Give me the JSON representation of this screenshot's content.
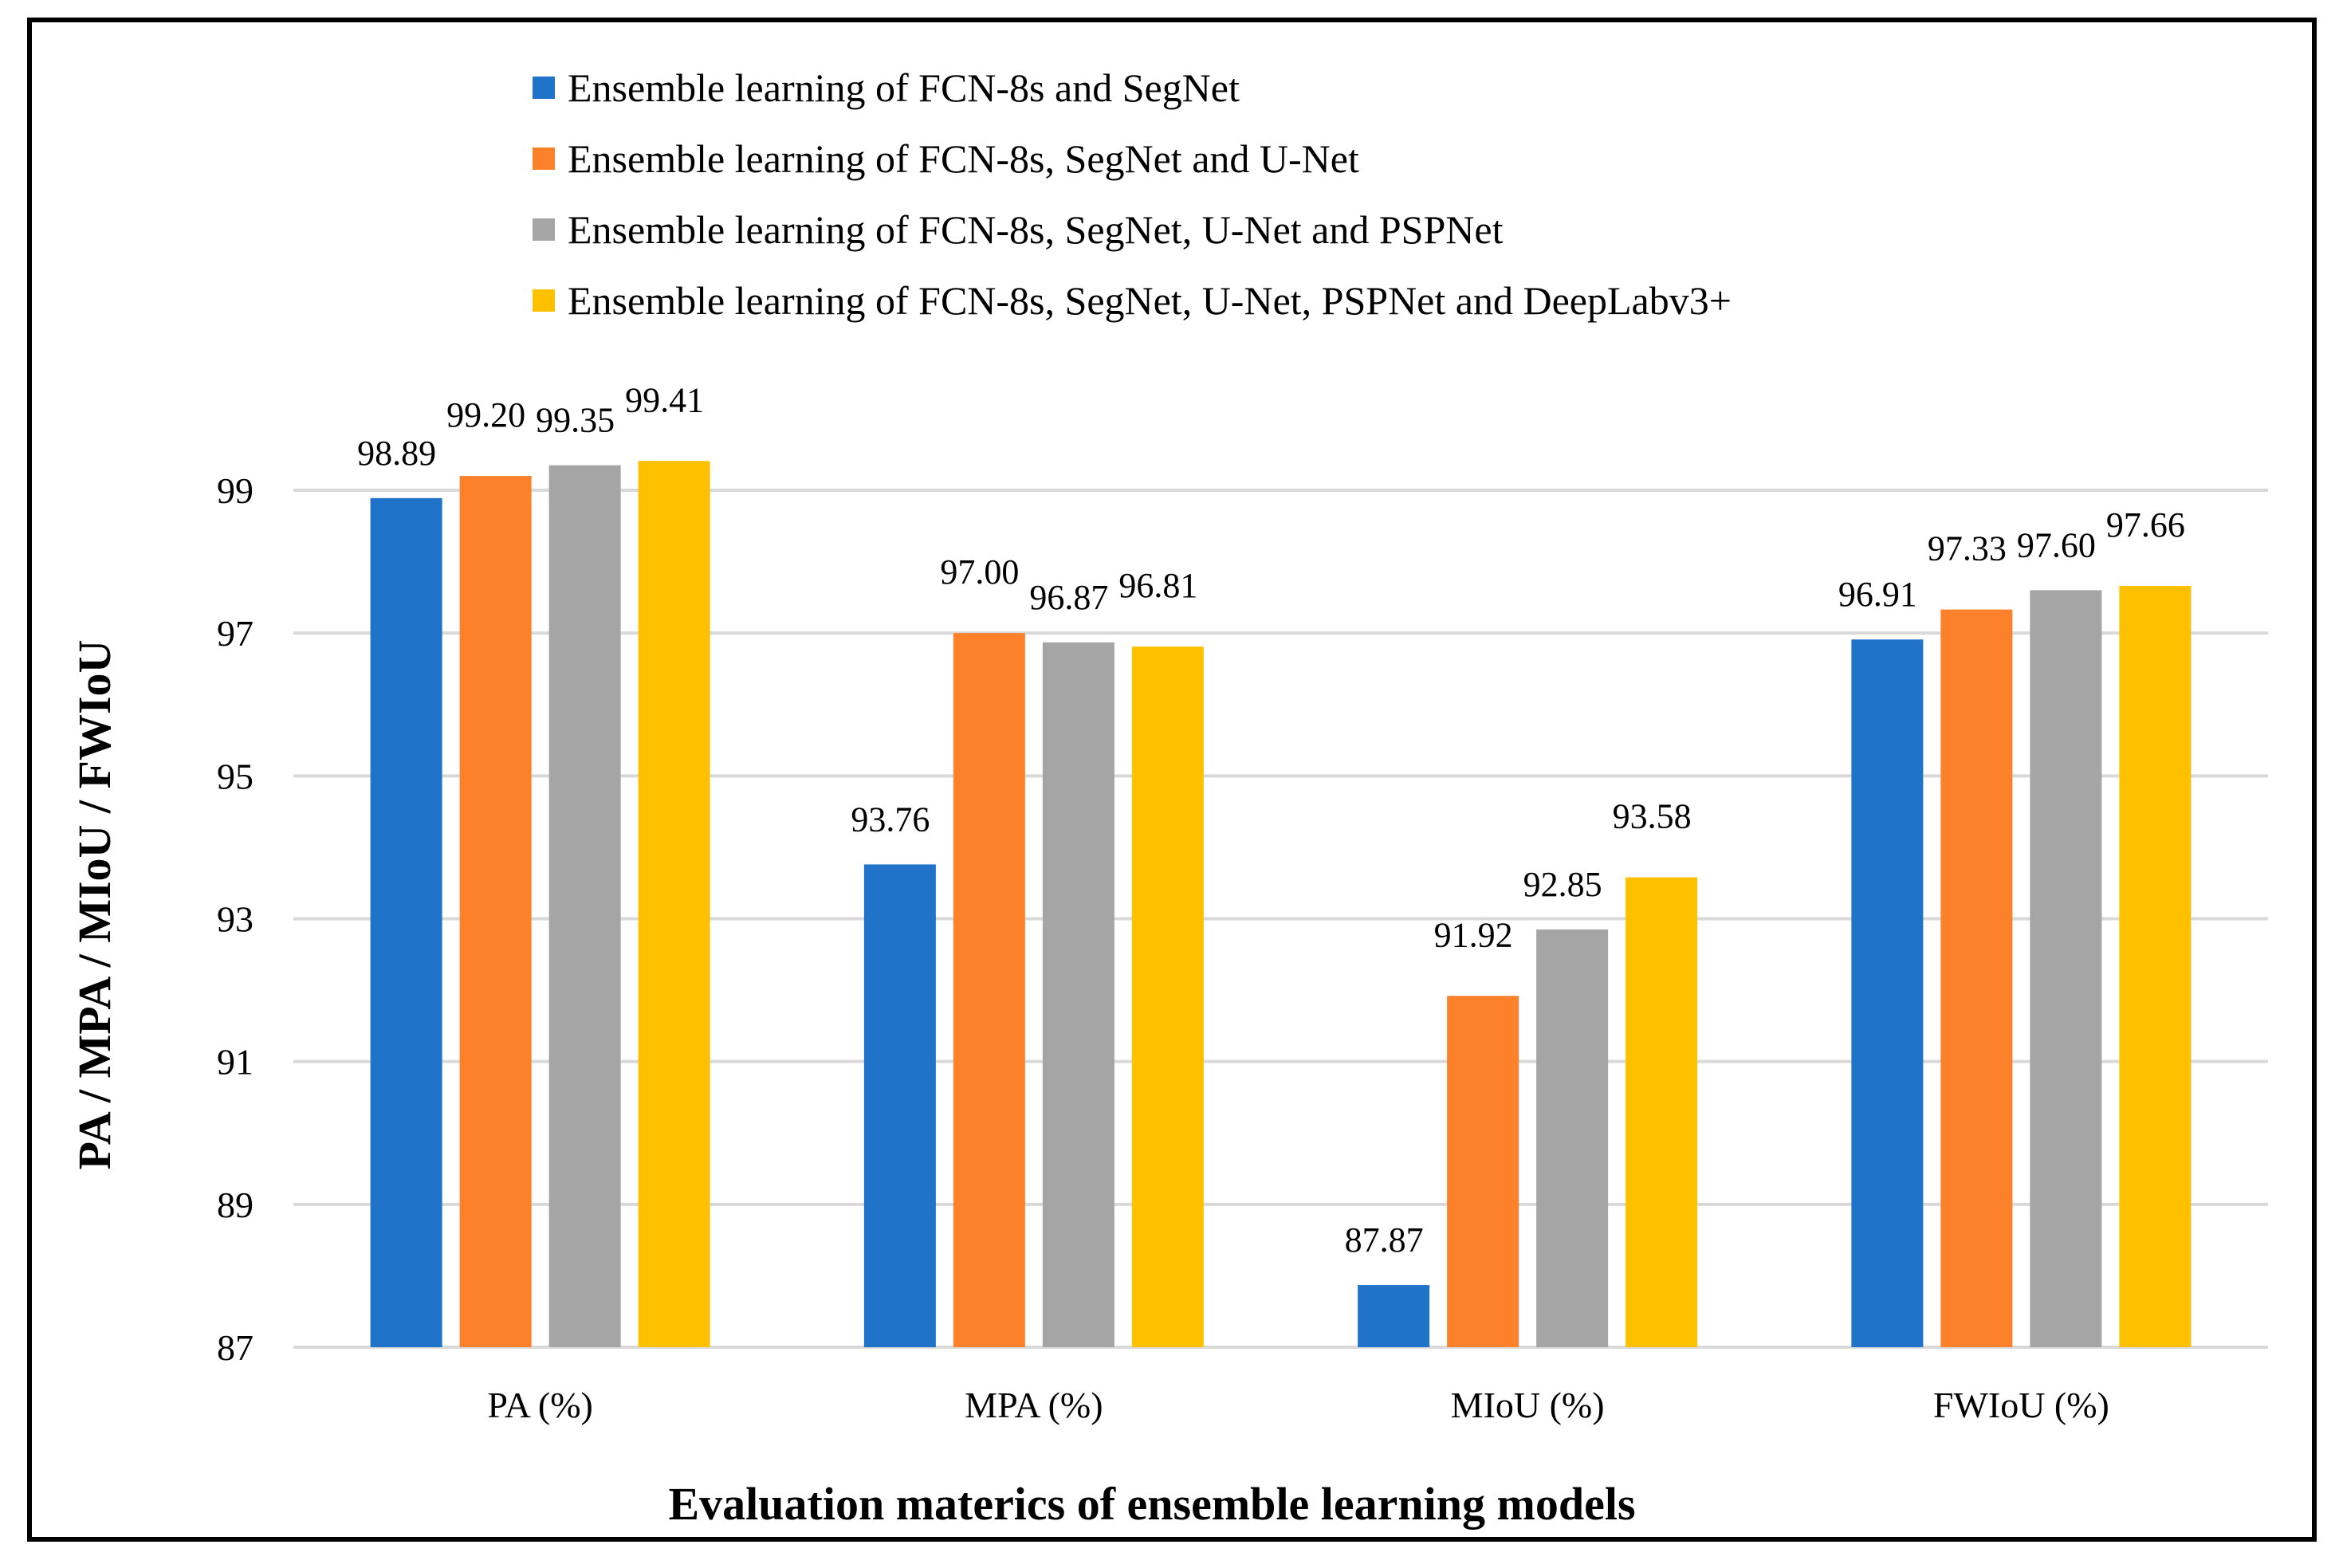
{
  "chart_data": {
    "type": "bar",
    "xlabel": "Evaluation materics of ensemble learning models",
    "ylabel": "PA / MPA / MIoU / FWIoU",
    "ylim": [
      87,
      100
    ],
    "yticks": [
      87,
      89,
      91,
      93,
      95,
      97,
      99
    ],
    "grid": true,
    "legend_position": "top",
    "categories": [
      "PA (%)",
      "MPA (%)",
      "MIoU (%)",
      "FWIoU (%)"
    ],
    "series": [
      {
        "name": "Ensemble learning of FCN-8s and SegNet",
        "color": "#1f73c9",
        "values": [
          98.89,
          93.76,
          87.87,
          96.91
        ]
      },
      {
        "name": "Ensemble learning of FCN-8s, SegNet and U-Net",
        "color": "#fd802a",
        "values": [
          99.2,
          97.0,
          91.92,
          97.33
        ]
      },
      {
        "name": "Ensemble learning of FCN-8s, SegNet, U-Net and PSPNet",
        "color": "#a5a5a5",
        "values": [
          99.35,
          96.87,
          92.85,
          97.6
        ]
      },
      {
        "name": "Ensemble learning of FCN-8s, SegNet, U-Net, PSPNet and DeepLabv3+",
        "color": "#ffc000",
        "values": [
          99.41,
          96.81,
          93.58,
          97.66
        ]
      }
    ]
  }
}
